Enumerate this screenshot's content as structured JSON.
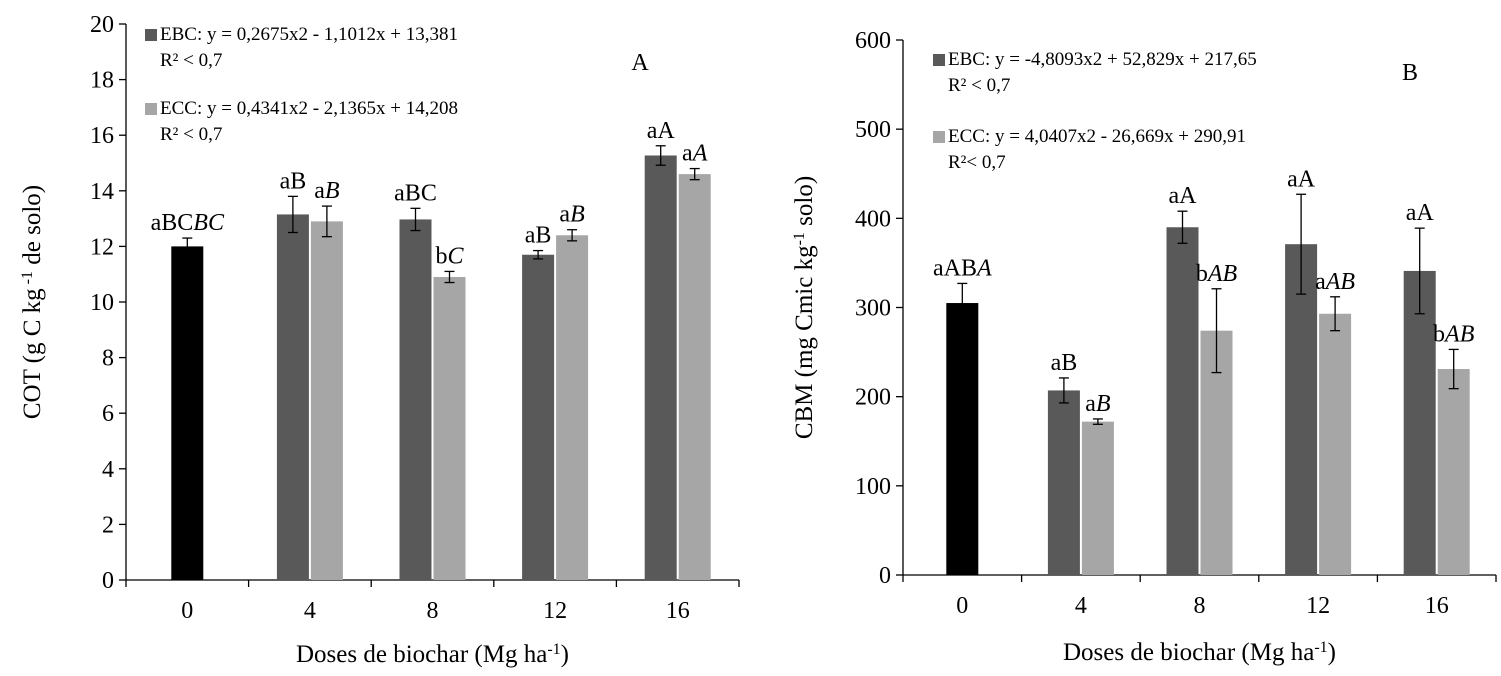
{
  "chart_data": [
    {
      "type": "bar",
      "panel_label": "A",
      "categories": [
        "0",
        "4",
        "8",
        "12",
        "16"
      ],
      "xlabel": "Doses de biochar (Mg ha",
      "xlabel_sup": "-1",
      "xlabel_end": ")",
      "ylabel": "COT (g C  kg",
      "ylabel_sup": " -1",
      "ylabel_end": " de solo)",
      "ylim": [
        0,
        20
      ],
      "yticks": [
        0,
        2,
        4,
        6,
        8,
        10,
        12,
        14,
        16,
        18,
        20
      ],
      "grid": false,
      "legend_position": "top-left",
      "control": {
        "value": 12.0,
        "error": 0.3,
        "color": "#000000",
        "label": [
          {
            "t": "aBC"
          },
          {
            "t": "BC",
            "i": true
          }
        ]
      },
      "series": [
        {
          "name": "EBC: y = 0,2675x2 - 1,1012x + 13,381",
          "r2": "R² < 0,7",
          "color": "#595959",
          "values": [
            null,
            13.15,
            12.97,
            11.7,
            15.27
          ],
          "errors": [
            null,
            0.65,
            0.4,
            0.15,
            0.35
          ],
          "labels": [
            null,
            [
              {
                "t": "aB"
              }
            ],
            [
              {
                "t": "aBC"
              }
            ],
            [
              {
                "t": "aB"
              }
            ],
            [
              {
                "t": "aA"
              }
            ]
          ]
        },
        {
          "name": "ECC: y = 0,4341x2 - 2,1365x + 14,208",
          "r2": "R² < 0,7",
          "color": "#a6a6a6",
          "values": [
            null,
            12.9,
            10.9,
            12.4,
            14.6
          ],
          "errors": [
            null,
            0.55,
            0.2,
            0.2,
            0.2
          ],
          "labels": [
            null,
            [
              {
                "t": "a"
              },
              {
                "t": "B",
                "i": true
              }
            ],
            [
              {
                "t": "b"
              },
              {
                "t": "C",
                "i": true
              }
            ],
            [
              {
                "t": "a"
              },
              {
                "t": "B",
                "i": true
              }
            ],
            [
              {
                "t": "a"
              },
              {
                "t": "A",
                "i": true
              }
            ]
          ]
        }
      ]
    },
    {
      "type": "bar",
      "panel_label": "B",
      "categories": [
        "0",
        "4",
        "8",
        "12",
        "16"
      ],
      "xlabel": "Doses de biochar (Mg ha",
      "xlabel_sup": "-1",
      "xlabel_end": ")",
      "ylabel": "CBM (mg Cmic kg",
      "ylabel_sup": "-1",
      "ylabel_end": " solo)",
      "ylim": [
        0,
        600
      ],
      "yticks": [
        0,
        100,
        200,
        300,
        400,
        500,
        600
      ],
      "grid": false,
      "legend_position": "top-left",
      "control": {
        "value": 305,
        "error": 22,
        "color": "#000000",
        "label": [
          {
            "t": "aAB"
          },
          {
            "t": "A",
            "i": true
          }
        ]
      },
      "series": [
        {
          "name": "EBC: y = -4,8093x2 + 52,829x + 217,65",
          "r2": "R² < 0,7",
          "color": "#595959",
          "values": [
            null,
            207,
            390,
            371,
            341
          ],
          "errors": [
            null,
            14,
            18,
            56,
            48
          ],
          "labels": [
            null,
            [
              {
                "t": "aB"
              }
            ],
            [
              {
                "t": "aA"
              }
            ],
            [
              {
                "t": "aA"
              }
            ],
            [
              {
                "t": "aA"
              }
            ]
          ]
        },
        {
          "name": "ECC: y = 4,0407x2 - 26,669x + 290,91",
          "r2": "R²< 0,7",
          "color": "#a6a6a6",
          "values": [
            null,
            172,
            274,
            293,
            231
          ],
          "errors": [
            null,
            3,
            47,
            19,
            22
          ],
          "labels": [
            null,
            [
              {
                "t": "a"
              },
              {
                "t": "B",
                "i": true
              }
            ],
            [
              {
                "t": "b"
              },
              {
                "t": "AB",
                "i": true
              }
            ],
            [
              {
                "t": "a"
              },
              {
                "t": "AB",
                "i": true
              }
            ],
            [
              {
                "t": "b"
              },
              {
                "t": "AB",
                "i": true
              }
            ]
          ]
        }
      ]
    }
  ]
}
